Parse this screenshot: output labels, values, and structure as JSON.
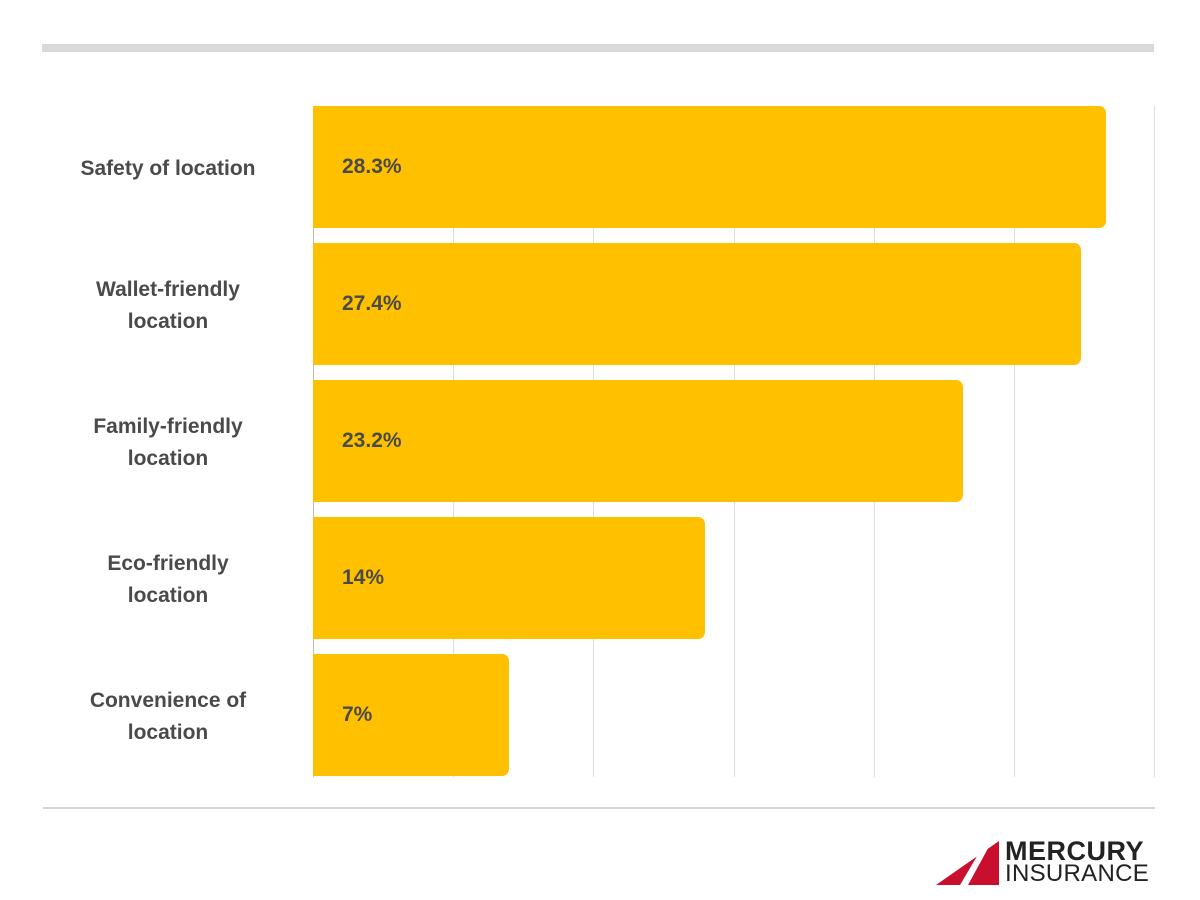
{
  "chart_data": {
    "type": "bar",
    "orientation": "horizontal",
    "title": "",
    "xlabel": "",
    "ylabel": "",
    "categories": [
      "Safety of location",
      "Wallet-friendly location",
      "Family-friendly location",
      "Eco-friendly location",
      "Convenience of location"
    ],
    "values": [
      28.3,
      27.4,
      23.2,
      14,
      7
    ],
    "value_labels": [
      "28.3%",
      "27.4%",
      "23.2%",
      "14%",
      "7%"
    ],
    "xlim": [
      0,
      30
    ],
    "grid": true,
    "gridline_interval": 5,
    "tick_labels_visible": false,
    "legend": null,
    "bar_color": "#FFC000"
  },
  "labels": [
    {
      "text": "Safety of location",
      "display": "Safety of location"
    },
    {
      "text": "Wallet-friendly location",
      "display": "Wallet-friendly\nlocation"
    },
    {
      "text": "Family-friendly location",
      "display": "Family-friendly\nlocation"
    },
    {
      "text": "Eco-friendly location",
      "display": "Eco-friendly\nlocation"
    },
    {
      "text": "Convenience of location",
      "display": "Convenience of\nlocation"
    }
  ],
  "logo": {
    "line1": "MERCURY",
    "line2": "INSURANCE",
    "mark_color": "#C8102E",
    "text_color": "#222222"
  },
  "colors": {
    "bar": "#FFC000",
    "text": "#4a4a4a",
    "rule": "#d9d9d9"
  }
}
